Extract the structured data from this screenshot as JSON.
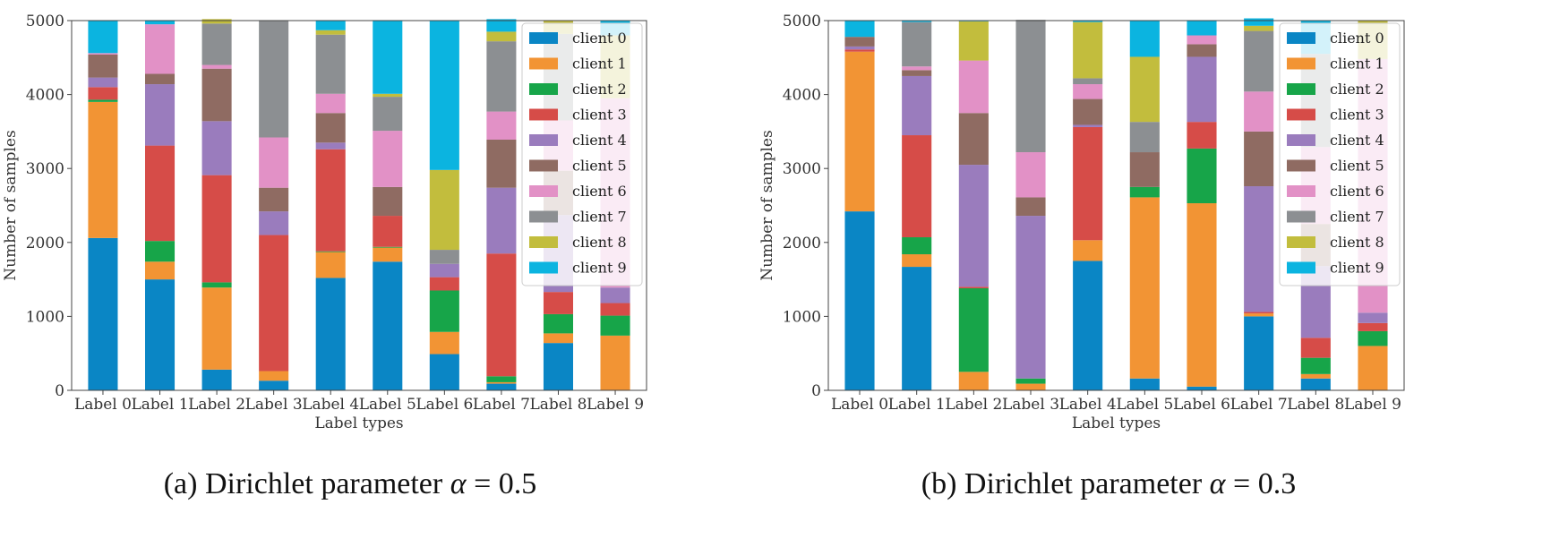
{
  "chart_data": [
    {
      "type": "bar",
      "stacked": true,
      "title": "",
      "xlabel": "Label types",
      "ylabel": "Number of samples",
      "ylim": [
        0,
        5000
      ],
      "yticks": [
        0,
        1000,
        2000,
        3000,
        4000,
        5000
      ],
      "categories": [
        "Label 0",
        "Label 1",
        "Label 2",
        "Label 3",
        "Label 4",
        "Label 5",
        "Label 6",
        "Label 7",
        "Label 8",
        "Label 9"
      ],
      "legend_position": "top-right",
      "caption": {
        "prefix": "(a) Dirichlet parameter ",
        "symbol": "α",
        "suffix": " = 0.5"
      },
      "series": [
        {
          "name": "client 0",
          "values": [
            2060,
            1500,
            280,
            130,
            1520,
            1740,
            490,
            90,
            640,
            0
          ]
        },
        {
          "name": "client 1",
          "values": [
            1840,
            240,
            1110,
            130,
            350,
            190,
            300,
            20,
            130,
            740
          ]
        },
        {
          "name": "client 2",
          "values": [
            30,
            280,
            70,
            0,
            10,
            10,
            560,
            80,
            260,
            270
          ]
        },
        {
          "name": "client 3",
          "values": [
            170,
            1290,
            1450,
            1840,
            1380,
            420,
            180,
            1660,
            300,
            170
          ]
        },
        {
          "name": "client 4",
          "values": [
            130,
            830,
            730,
            320,
            90,
            0,
            180,
            890,
            1040,
            210
          ]
        },
        {
          "name": "client 5",
          "values": [
            310,
            140,
            710,
            320,
            400,
            390,
            0,
            650,
            600,
            0
          ]
        },
        {
          "name": "client 6",
          "values": [
            20,
            670,
            50,
            680,
            260,
            760,
            0,
            380,
            680,
            2560
          ]
        },
        {
          "name": "client 7",
          "values": [
            0,
            0,
            560,
            1580,
            800,
            460,
            190,
            950,
            1170,
            0
          ]
        },
        {
          "name": "client 8",
          "values": [
            0,
            0,
            60,
            0,
            60,
            40,
            1080,
            130,
            180,
            850
          ]
        },
        {
          "name": "client 9",
          "values": [
            440,
            50,
            0,
            0,
            130,
            990,
            2020,
            170,
            0,
            200
          ]
        }
      ]
    },
    {
      "type": "bar",
      "stacked": true,
      "title": "",
      "xlabel": "Label types",
      "ylabel": "Number of samples",
      "ylim": [
        0,
        5000
      ],
      "yticks": [
        0,
        1000,
        2000,
        3000,
        4000,
        5000
      ],
      "categories": [
        "Label 0",
        "Label 1",
        "Label 2",
        "Label 3",
        "Label 4",
        "Label 5",
        "Label 6",
        "Label 7",
        "Label 8",
        "Label 9"
      ],
      "legend_position": "top-right",
      "caption": {
        "prefix": "(b) Dirichlet parameter ",
        "symbol": "α",
        "suffix": " = 0.3"
      },
      "series": [
        {
          "name": "client 0",
          "values": [
            2420,
            1670,
            0,
            0,
            1750,
            160,
            50,
            1000,
            160,
            0
          ]
        },
        {
          "name": "client 1",
          "values": [
            2160,
            170,
            250,
            90,
            280,
            2450,
            2480,
            40,
            60,
            600
          ]
        },
        {
          "name": "client 2",
          "values": [
            0,
            230,
            1130,
            70,
            0,
            140,
            740,
            0,
            220,
            200
          ]
        },
        {
          "name": "client 3",
          "values": [
            30,
            1380,
            20,
            0,
            1530,
            0,
            360,
            20,
            270,
            110
          ]
        },
        {
          "name": "client 4",
          "values": [
            40,
            800,
            1650,
            2200,
            30,
            0,
            880,
            1700,
            970,
            140
          ]
        },
        {
          "name": "client 5",
          "values": [
            130,
            80,
            700,
            250,
            350,
            470,
            170,
            740,
            570,
            0
          ]
        },
        {
          "name": "client 6",
          "values": [
            0,
            50,
            710,
            610,
            200,
            0,
            120,
            540,
            1040,
            3430
          ]
        },
        {
          "name": "client 7",
          "values": [
            0,
            600,
            0,
            1790,
            80,
            410,
            0,
            820,
            1260,
            0
          ]
        },
        {
          "name": "client 8",
          "values": [
            0,
            0,
            530,
            0,
            760,
            880,
            0,
            70,
            0,
            520
          ]
        },
        {
          "name": "client 9",
          "values": [
            220,
            20,
            10,
            0,
            20,
            490,
            200,
            100,
            450,
            0
          ]
        }
      ]
    }
  ],
  "colors": [
    "#0a86c5",
    "#f29434",
    "#17a549",
    "#d64c48",
    "#9a7cbd",
    "#8f6b62",
    "#e291c6",
    "#8c8f92",
    "#c2bd3d",
    "#0bb4e0"
  ]
}
